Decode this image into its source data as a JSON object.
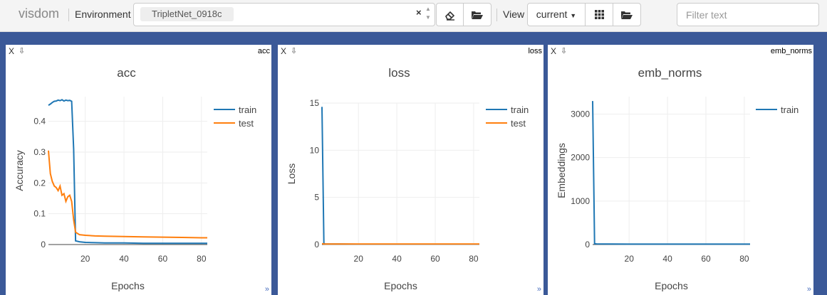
{
  "toolbar": {
    "brand": "visdom",
    "environment_label": "Environment",
    "environment_value": "TripletNet_0918c",
    "clear_glyph": "×",
    "view_label": "View",
    "view_value": "current",
    "filter_placeholder": "Filter text"
  },
  "icons": {
    "eraser": "eraser-icon",
    "folder": "folder-open-icon",
    "grid": "grid-icon",
    "download": "download-icon",
    "resize": "resize-icon"
  },
  "panes": [
    {
      "id": "acc",
      "name": "acc",
      "close": "X",
      "chart_data": {
        "type": "line",
        "title": "acc",
        "xlabel": "Epochs",
        "ylabel": "Accuracy",
        "xlim": [
          1,
          83
        ],
        "ylim": [
          0,
          0.48
        ],
        "xticks": [
          20,
          40,
          60,
          80
        ],
        "yticks": [
          0,
          0.1,
          0.2,
          0.3,
          0.4
        ],
        "ytick_labels": [
          "0",
          "0.1",
          "0.2",
          "0.3",
          "0.4"
        ],
        "legend": "top-right",
        "series": [
          {
            "name": "train",
            "color": "#1f77b4",
            "x": [
              1,
              2,
              3,
              4,
              5,
              6,
              7,
              8,
              9,
              10,
              11,
              12,
              13,
              14,
              15,
              17,
              20,
              25,
              30,
              40,
              50,
              60,
              70,
              80,
              83
            ],
            "y": [
              0.452,
              0.456,
              0.461,
              0.465,
              0.466,
              0.469,
              0.467,
              0.47,
              0.466,
              0.469,
              0.467,
              0.468,
              0.465,
              0.31,
              0.012,
              0.009,
              0.007,
              0.006,
              0.005,
              0.005,
              0.004,
              0.004,
              0.004,
              0.004,
              0.004
            ]
          },
          {
            "name": "test",
            "color": "#ff7f0e",
            "x": [
              1,
              2,
              3,
              4,
              5,
              6,
              7,
              8,
              9,
              10,
              11,
              12,
              13,
              14,
              15,
              17,
              20,
              25,
              30,
              40,
              50,
              60,
              70,
              80,
              83
            ],
            "y": [
              0.305,
              0.23,
              0.205,
              0.19,
              0.185,
              0.175,
              0.19,
              0.16,
              0.165,
              0.14,
              0.155,
              0.16,
              0.14,
              0.08,
              0.04,
              0.032,
              0.03,
              0.028,
              0.027,
              0.026,
              0.025,
              0.024,
              0.023,
              0.022,
              0.022
            ]
          }
        ]
      }
    },
    {
      "id": "loss",
      "name": "loss",
      "close": "X",
      "chart_data": {
        "type": "line",
        "title": "loss",
        "xlabel": "Epochs",
        "ylabel": "Loss",
        "xlim": [
          1,
          83
        ],
        "ylim": [
          0,
          15
        ],
        "xticks": [
          20,
          40,
          60,
          80
        ],
        "yticks": [
          0,
          5,
          10,
          15
        ],
        "ytick_labels": [
          "0",
          "5",
          "10",
          "15"
        ],
        "legend": "top-right",
        "series": [
          {
            "name": "train",
            "color": "#1f77b4",
            "x": [
              1,
              2,
              3,
              10,
              20,
              40,
              60,
              80,
              83
            ],
            "y": [
              14.6,
              0.1,
              0.05,
              0.05,
              0.04,
              0.04,
              0.04,
              0.04,
              0.04
            ]
          },
          {
            "name": "test",
            "color": "#ff7f0e",
            "x": [
              1,
              2,
              3,
              10,
              20,
              40,
              60,
              80,
              83
            ],
            "y": [
              0.1,
              0.06,
              0.05,
              0.05,
              0.05,
              0.05,
              0.05,
              0.05,
              0.05
            ]
          }
        ]
      }
    },
    {
      "id": "emb_norms",
      "name": "emb_norms",
      "close": "X",
      "chart_data": {
        "type": "line",
        "title": "emb_norms",
        "xlabel": "Epochs",
        "ylabel": "Embeddings",
        "xlim": [
          1,
          83
        ],
        "ylim": [
          0,
          3400
        ],
        "xticks": [
          20,
          40,
          60,
          80
        ],
        "yticks": [
          0,
          1000,
          2000,
          3000
        ],
        "ytick_labels": [
          "0",
          "1000",
          "2000",
          "3000"
        ],
        "legend": "top-right",
        "series": [
          {
            "name": "train",
            "color": "#1f77b4",
            "x": [
              1,
              2,
              3,
              10,
              20,
              40,
              60,
              80,
              83
            ],
            "y": [
              3300,
              20,
              15,
              12,
              10,
              10,
              10,
              10,
              10
            ]
          }
        ]
      }
    }
  ]
}
